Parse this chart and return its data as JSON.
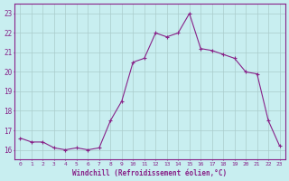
{
  "x": [
    0,
    1,
    2,
    3,
    4,
    5,
    6,
    7,
    8,
    9,
    10,
    11,
    12,
    13,
    14,
    15,
    16,
    17,
    18,
    19,
    20,
    21,
    22,
    23
  ],
  "y": [
    16.6,
    16.4,
    16.4,
    16.1,
    16.0,
    16.1,
    16.0,
    16.1,
    17.5,
    18.5,
    20.5,
    20.7,
    22.0,
    21.8,
    22.0,
    23.0,
    21.2,
    21.1,
    20.9,
    20.7,
    20.0,
    19.9,
    17.5,
    16.2
  ],
  "line_color": "#882288",
  "marker": "+",
  "marker_size": 3,
  "bg_color": "#c8eef0",
  "grid_color": "#aacccc",
  "xlabel": "Windchill (Refroidissement éolien,°C)",
  "xlim": [
    -0.5,
    23.5
  ],
  "ylim": [
    15.5,
    23.5
  ],
  "yticks": [
    16,
    17,
    18,
    19,
    20,
    21,
    22,
    23
  ],
  "xticks": [
    0,
    1,
    2,
    3,
    4,
    5,
    6,
    7,
    8,
    9,
    10,
    11,
    12,
    13,
    14,
    15,
    16,
    17,
    18,
    19,
    20,
    21,
    22,
    23
  ],
  "tick_color": "#882288",
  "label_color": "#882288"
}
